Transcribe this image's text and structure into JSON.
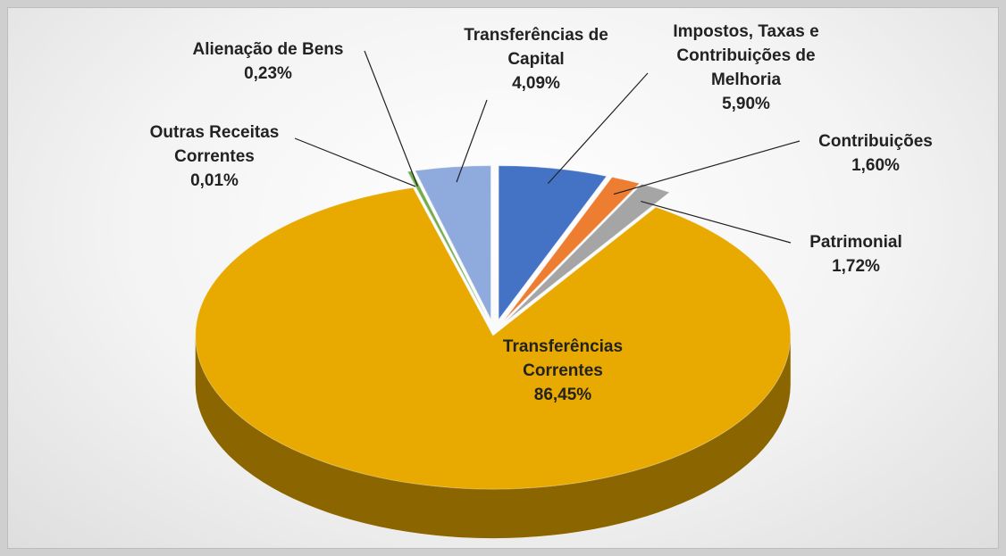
{
  "chart_data": {
    "type": "pie",
    "three_d": true,
    "categories": [
      "Impostos, Taxas e Contribuições de Melhoria",
      "Contribuições",
      "Patrimonial",
      "Transferências Correntes",
      "Outras Receitas Correntes",
      "Alienação de Bens",
      "Transferências de Capital"
    ],
    "values": [
      5.9,
      1.6,
      1.72,
      86.45,
      0.01,
      0.23,
      4.09
    ],
    "value_labels": [
      "5,90%",
      "1,60%",
      "1,72%",
      "86,45%",
      "0,01%",
      "0,23%",
      "4,09%"
    ],
    "colors": [
      "#4472c4",
      "#ed7d31",
      "#a5a5a5",
      "#e8a900",
      "#264478",
      "#70ad47",
      "#8faadc"
    ]
  }
}
